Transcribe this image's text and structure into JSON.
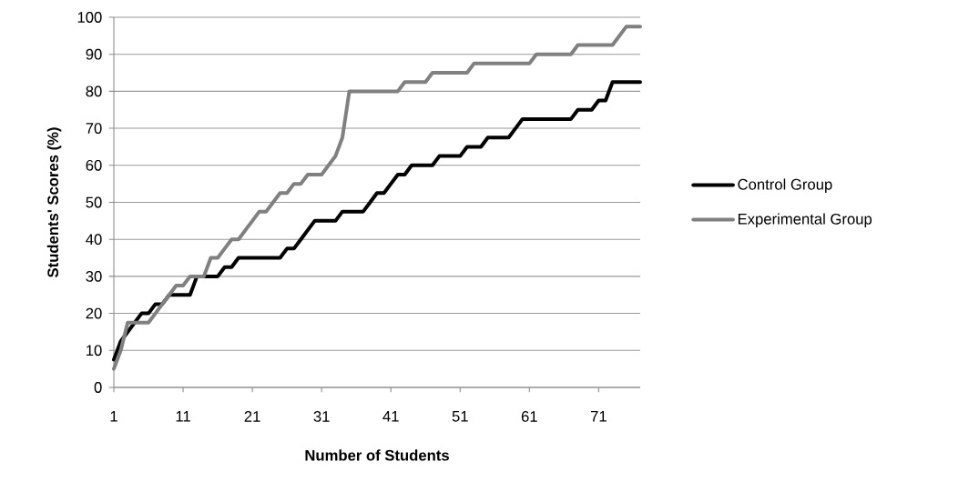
{
  "chart_data": {
    "type": "line",
    "xlabel": "Number of Students",
    "ylabel": "Students' Scores (%)",
    "x": [
      1,
      2,
      3,
      4,
      5,
      6,
      7,
      8,
      9,
      10,
      11,
      12,
      13,
      14,
      15,
      16,
      17,
      18,
      19,
      20,
      21,
      22,
      23,
      24,
      25,
      26,
      27,
      28,
      29,
      30,
      31,
      32,
      33,
      34,
      35,
      36,
      37,
      38,
      39,
      40,
      41,
      42,
      43,
      44,
      45,
      46,
      47,
      48,
      49,
      50,
      51,
      52,
      53,
      54,
      55,
      56,
      57,
      58,
      59,
      60,
      61,
      62,
      63,
      64,
      65,
      66,
      67,
      68,
      69,
      70,
      71,
      72,
      73,
      74,
      75,
      76,
      77
    ],
    "series": [
      {
        "name": "Control Group",
        "color": "#000000",
        "values": [
          7.5,
          12.5,
          15,
          17.5,
          20,
          20,
          22.5,
          22.5,
          25,
          25,
          25,
          25,
          30,
          30,
          30,
          30,
          32.5,
          32.5,
          35,
          35,
          35,
          35,
          35,
          35,
          35,
          37.5,
          37.5,
          40,
          42.5,
          45,
          45,
          45,
          45,
          47.5,
          47.5,
          47.5,
          47.5,
          50,
          52.5,
          52.5,
          55,
          57.5,
          57.5,
          60,
          60,
          60,
          60,
          62.5,
          62.5,
          62.5,
          62.5,
          65,
          65,
          65,
          67.5,
          67.5,
          67.5,
          67.5,
          70,
          72.5,
          72.5,
          72.5,
          72.5,
          72.5,
          72.5,
          72.5,
          72.5,
          75,
          75,
          75,
          77.5,
          77.5,
          82.5,
          82.5,
          82.5,
          82.5,
          82.5
        ]
      },
      {
        "name": "Experimental Group",
        "color": "#808080",
        "values": [
          5,
          10,
          17.5,
          17.5,
          17.5,
          17.5,
          20,
          22.5,
          25,
          27.5,
          27.5,
          30,
          30,
          30,
          35,
          35,
          37.5,
          40,
          40,
          42.5,
          45,
          47.5,
          47.5,
          50,
          52.5,
          52.5,
          55,
          55,
          57.5,
          57.5,
          57.5,
          60,
          62.5,
          67.5,
          80,
          80,
          80,
          80,
          80,
          80,
          80,
          80,
          82.5,
          82.5,
          82.5,
          82.5,
          85,
          85,
          85,
          85,
          85,
          85,
          87.5,
          87.5,
          87.5,
          87.5,
          87.5,
          87.5,
          87.5,
          87.5,
          87.5,
          90,
          90,
          90,
          90,
          90,
          90,
          92.5,
          92.5,
          92.5,
          92.5,
          92.5,
          92.5,
          95,
          97.5,
          97.5,
          97.5
        ]
      }
    ],
    "xlim": [
      1,
      77
    ],
    "ylim": [
      0,
      100
    ],
    "xticks": [
      1,
      11,
      21,
      31,
      41,
      51,
      61,
      71
    ],
    "yticks": [
      0,
      10,
      20,
      30,
      40,
      50,
      60,
      70,
      80,
      90,
      100
    ],
    "grid": "y",
    "legend": "right"
  }
}
